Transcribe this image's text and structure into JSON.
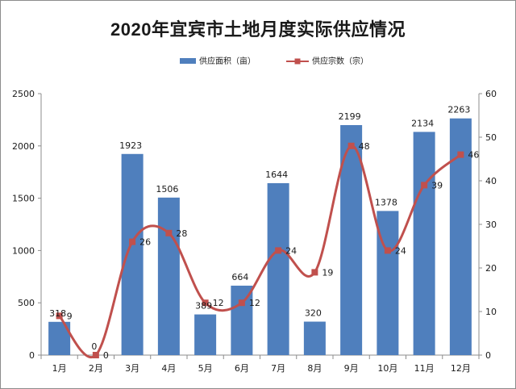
{
  "chart_data": {
    "type": "bar",
    "title": "2020年宜宾市土地月度实际供应情况",
    "categories": [
      "1月",
      "2月",
      "3月",
      "4月",
      "5月",
      "6月",
      "7月",
      "8月",
      "9月",
      "10月",
      "11月",
      "12月"
    ],
    "series": [
      {
        "name": "供应面积（亩）",
        "type": "bar",
        "axis": "left",
        "color": "#4f7fbd",
        "values": [
          318,
          0,
          1923,
          1506,
          389,
          664,
          1644,
          320,
          2199,
          1378,
          2134,
          2263
        ],
        "labels": [
          "318",
          "0",
          "1923",
          "1506",
          "389",
          "664",
          "1644",
          "320",
          "2199",
          "1378",
          "2134",
          "2263"
        ]
      },
      {
        "name": "供应宗数（宗）",
        "type": "line",
        "axis": "right",
        "color": "#c0504d",
        "smooth": true,
        "values": [
          9,
          0,
          26,
          28,
          12,
          12,
          24,
          19,
          48,
          24,
          39,
          46
        ],
        "labels": [
          "9",
          "0",
          "26",
          "28",
          "12",
          "12",
          "24",
          "19",
          "48",
          "24",
          "39",
          "46"
        ]
      }
    ],
    "y_left": {
      "ylim": [
        0,
        2500
      ],
      "ticks": [
        "0",
        "500",
        "1000",
        "1500",
        "2000",
        "2500"
      ]
    },
    "y_right": {
      "ylim": [
        0,
        60
      ],
      "ticks": [
        "0",
        "10",
        "20",
        "30",
        "40",
        "50",
        "60"
      ]
    },
    "legend": {
      "position": "top"
    },
    "grid": false
  }
}
